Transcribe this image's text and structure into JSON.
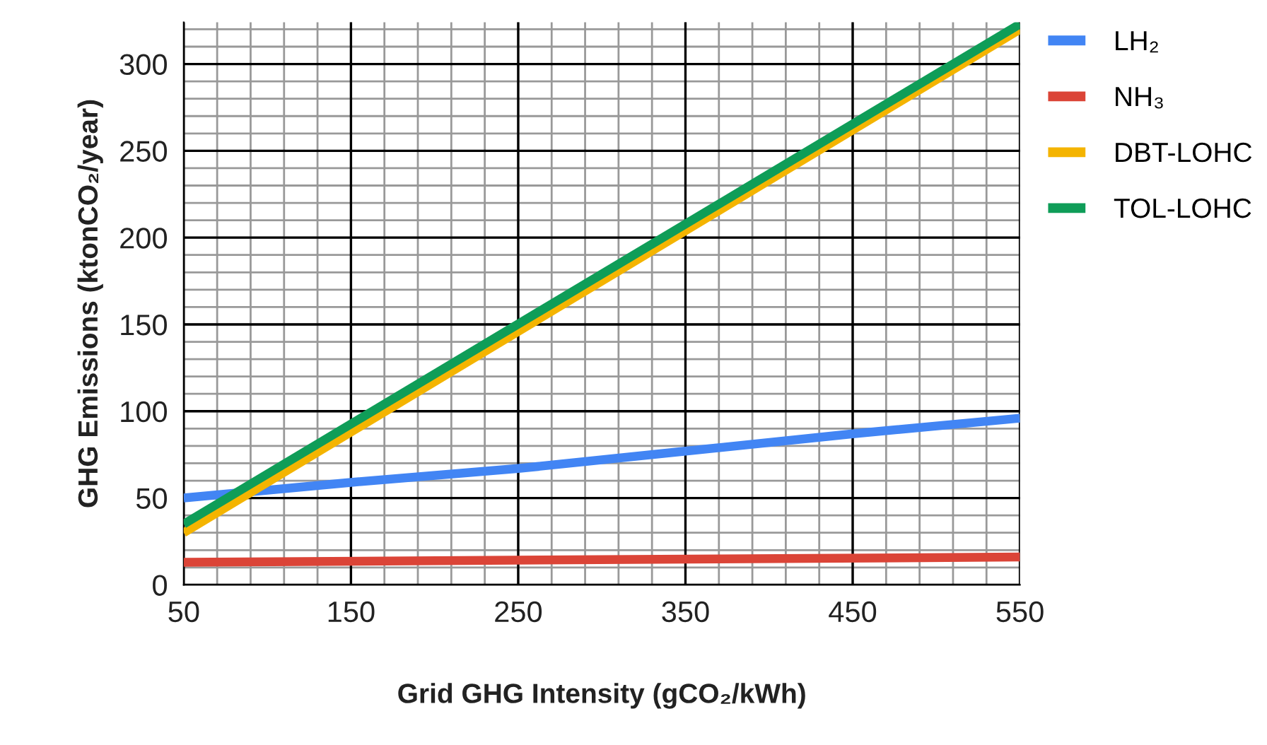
{
  "chart_data": {
    "type": "line",
    "xlabel": "Grid GHG Intensity (gCO₂/kWh)",
    "ylabel": "GHG Emissions (ktonCO₂/year)",
    "xlim": [
      50,
      550
    ],
    "xticks": [
      50,
      150,
      250,
      350,
      450,
      550
    ],
    "ylim": [
      0,
      324
    ],
    "yticks": [
      0,
      50,
      100,
      150,
      200,
      250,
      300
    ],
    "grid": true,
    "legend": "right",
    "marker": "none",
    "line_style": "solid",
    "series": [
      {
        "name": "LH₂",
        "color": "#4285f4",
        "x": [
          50,
          150,
          250,
          350,
          450,
          550
        ],
        "values": [
          50,
          59,
          67,
          77,
          87,
          96
        ]
      },
      {
        "name": "NH₃",
        "color": "#db4437",
        "x": [
          50,
          550
        ],
        "values": [
          13,
          16
        ]
      },
      {
        "name": "DBT-LOHC",
        "color": "#f4b400",
        "x": [
          50,
          550
        ],
        "values": [
          30,
          320
        ]
      },
      {
        "name": "TOL-LOHC",
        "color": "#0f9d58",
        "x": [
          50,
          550
        ],
        "values": [
          35,
          323
        ]
      }
    ]
  }
}
